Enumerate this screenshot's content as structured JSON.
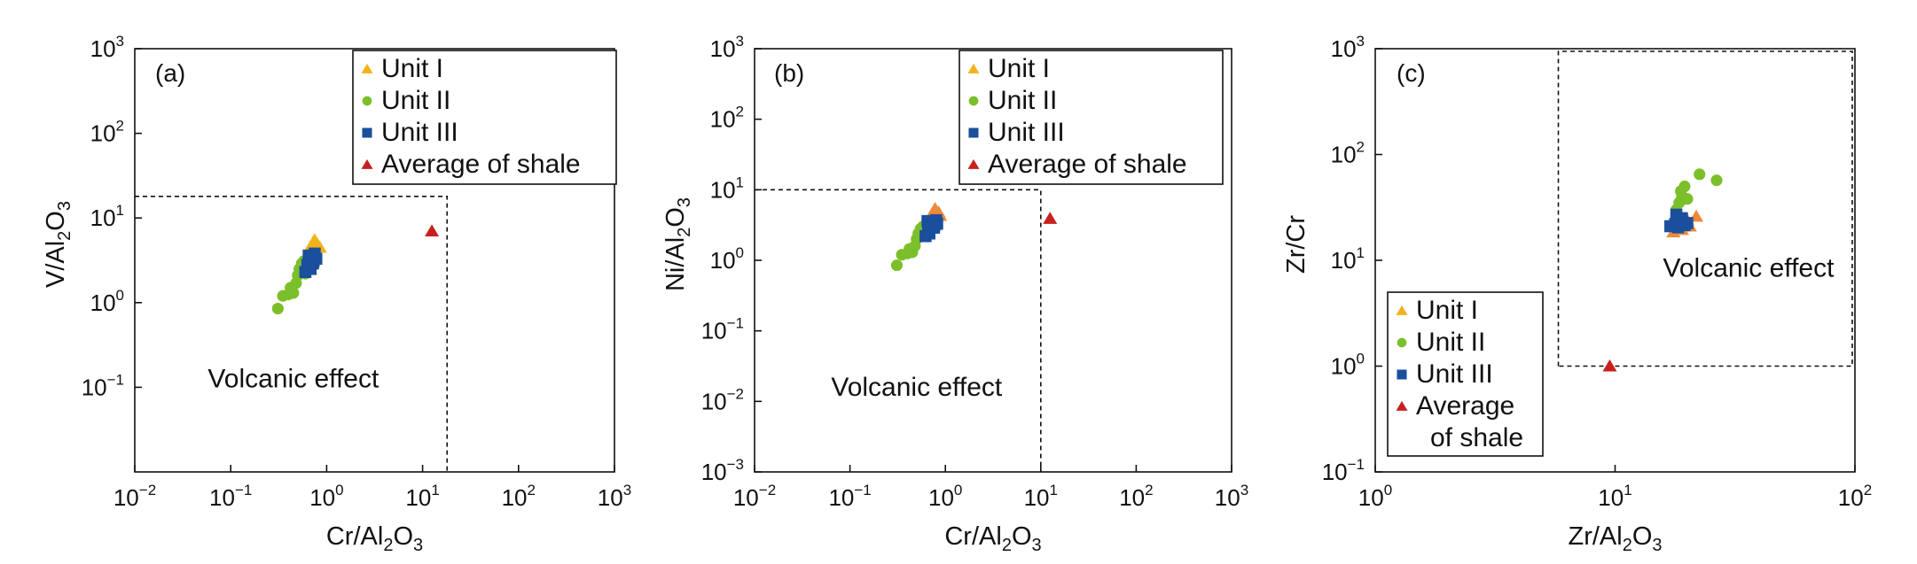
{
  "colors": {
    "unit1": "#f2b21c",
    "unit1_alt": "#ee8a3a",
    "unit2": "#7bbf2a",
    "unit3": "#1a4f9c",
    "shale": "#c8201e",
    "axis": "#111111"
  },
  "chart_data": [
    {
      "type": "scatter",
      "panel_label": "(a)",
      "x_scale": "log",
      "y_scale": "log",
      "xlim": [
        0.01,
        1000
      ],
      "ylim": [
        0.01,
        1000
      ],
      "xlabel": {
        "pre": "Cr/Al",
        "sub1": "2",
        "mid": "O",
        "sub2": "3"
      },
      "ylabel": {
        "pre": "V/Al",
        "sub1": "2",
        "mid": "O",
        "sub2": "3"
      },
      "xticks": [
        {
          "base": "10",
          "exp": "−2",
          "value": 0.01
        },
        {
          "base": "10",
          "exp": "−1",
          "value": 0.1
        },
        {
          "base": "10",
          "exp": "0",
          "value": 1
        },
        {
          "base": "10",
          "exp": "1",
          "value": 10
        },
        {
          "base": "10",
          "exp": "2",
          "value": 100
        },
        {
          "base": "10",
          "exp": "3",
          "value": 1000
        }
      ],
      "yticks": [
        {
          "base": "10",
          "exp": "−1",
          "value": 0.1
        },
        {
          "base": "10",
          "exp": "0",
          "value": 1
        },
        {
          "base": "10",
          "exp": "1",
          "value": 10
        },
        {
          "base": "10",
          "exp": "2",
          "value": 100
        },
        {
          "base": "10",
          "exp": "3",
          "value": 1000
        }
      ],
      "region": {
        "x_min": 0.01,
        "x_max": 18,
        "y_min": 0.01,
        "y_max": 18
      },
      "annotation": {
        "text": "Volcanic effect",
        "x": 0.45,
        "y": 0.1
      },
      "legend": {
        "position": "top-right",
        "entries": [
          {
            "label": "Unit I",
            "series": "unit1"
          },
          {
            "label": "Unit II",
            "series": "unit2"
          },
          {
            "label": "Unit III",
            "series": "unit3"
          },
          {
            "label": "Average of shale",
            "series": "shale"
          }
        ]
      },
      "series": [
        {
          "name": "Unit I",
          "key": "unit1",
          "marker": "triangle",
          "color": "#f2b21c",
          "points": [
            [
              0.75,
              5.5
            ],
            [
              0.8,
              4.9
            ],
            [
              0.68,
              4.6
            ],
            [
              0.72,
              5.1
            ],
            [
              0.85,
              4.5
            ]
          ]
        },
        {
          "name": "Unit II",
          "key": "unit2",
          "marker": "circle",
          "color": "#7bbf2a",
          "points": [
            [
              0.31,
              0.85
            ],
            [
              0.35,
              1.2
            ],
            [
              0.4,
              1.25
            ],
            [
              0.45,
              1.3
            ],
            [
              0.48,
              1.7
            ],
            [
              0.5,
              2.1
            ],
            [
              0.52,
              2.5
            ],
            [
              0.55,
              2.9
            ],
            [
              0.58,
              3.1
            ],
            [
              0.42,
              1.5
            ],
            [
              0.6,
              2.2
            ],
            [
              0.62,
              2.7
            ]
          ]
        },
        {
          "name": "Unit III",
          "key": "unit3",
          "marker": "square",
          "color": "#1a4f9c",
          "points": [
            [
              0.6,
              2.3
            ],
            [
              0.63,
              2.8
            ],
            [
              0.66,
              3.2
            ],
            [
              0.7,
              3.5
            ],
            [
              0.72,
              2.9
            ],
            [
              0.75,
              3.8
            ],
            [
              0.68,
              2.5
            ],
            [
              0.73,
              3.1
            ],
            [
              0.78,
              3.3
            ],
            [
              0.65,
              3.6
            ]
          ]
        },
        {
          "name": "Average of shale",
          "key": "shale",
          "marker": "triangle",
          "color": "#c8201e",
          "points": [
            [
              12.5,
              7.0
            ]
          ]
        }
      ]
    },
    {
      "type": "scatter",
      "panel_label": "(b)",
      "x_scale": "log",
      "y_scale": "log",
      "xlim": [
        0.01,
        1000
      ],
      "ylim": [
        0.001,
        1000
      ],
      "xlabel": {
        "pre": "Cr/Al",
        "sub1": "2",
        "mid": "O",
        "sub2": "3"
      },
      "ylabel": {
        "pre": "Ni/Al",
        "sub1": "2",
        "mid": "O",
        "sub2": "3"
      },
      "xticks": [
        {
          "base": "10",
          "exp": "−2",
          "value": 0.01
        },
        {
          "base": "10",
          "exp": "−1",
          "value": 0.1
        },
        {
          "base": "10",
          "exp": "0",
          "value": 1
        },
        {
          "base": "10",
          "exp": "1",
          "value": 10
        },
        {
          "base": "10",
          "exp": "2",
          "value": 100
        },
        {
          "base": "10",
          "exp": "3",
          "value": 1000
        }
      ],
      "yticks": [
        {
          "base": "10",
          "exp": "−3",
          "value": 0.001
        },
        {
          "base": "10",
          "exp": "−2",
          "value": 0.01
        },
        {
          "base": "10",
          "exp": "−1",
          "value": 0.1
        },
        {
          "base": "10",
          "exp": "0",
          "value": 1
        },
        {
          "base": "10",
          "exp": "1",
          "value": 10
        },
        {
          "base": "10",
          "exp": "2",
          "value": 100
        },
        {
          "base": "10",
          "exp": "3",
          "value": 1000
        }
      ],
      "region": {
        "x_min": 0.01,
        "x_max": 10,
        "y_min": 0.001,
        "y_max": 10
      },
      "annotation": {
        "text": "Volcanic effect",
        "x": 0.5,
        "y": 0.012
      },
      "legend": {
        "position": "top-right",
        "entries": [
          {
            "label": "Unit I",
            "series": "unit1"
          },
          {
            "label": "Unit II",
            "series": "unit2"
          },
          {
            "label": "Unit III",
            "series": "unit3"
          },
          {
            "label": "Average of shale",
            "series": "shale"
          }
        ]
      },
      "series": [
        {
          "name": "Unit I",
          "key": "unit1",
          "marker": "triangle",
          "color": "#ee8a3a",
          "points": [
            [
              0.78,
              5.4
            ],
            [
              0.85,
              4.8
            ],
            [
              0.72,
              4.5
            ],
            [
              0.88,
              4.3
            ],
            [
              0.8,
              5.0
            ]
          ]
        },
        {
          "name": "Unit II",
          "key": "unit2",
          "marker": "circle",
          "color": "#7bbf2a",
          "points": [
            [
              0.31,
              0.85
            ],
            [
              0.35,
              1.2
            ],
            [
              0.4,
              1.25
            ],
            [
              0.45,
              1.3
            ],
            [
              0.48,
              1.6
            ],
            [
              0.5,
              2.0
            ],
            [
              0.52,
              2.4
            ],
            [
              0.55,
              2.8
            ],
            [
              0.58,
              3.0
            ],
            [
              0.42,
              1.45
            ],
            [
              0.6,
              2.2
            ],
            [
              0.62,
              2.6
            ]
          ]
        },
        {
          "name": "Unit III",
          "key": "unit3",
          "marker": "square",
          "color": "#1a4f9c",
          "points": [
            [
              0.62,
              2.2
            ],
            [
              0.66,
              2.7
            ],
            [
              0.7,
              3.1
            ],
            [
              0.73,
              3.5
            ],
            [
              0.76,
              2.9
            ],
            [
              0.8,
              3.7
            ],
            [
              0.68,
              2.4
            ],
            [
              0.77,
              3.2
            ],
            [
              0.82,
              3.3
            ],
            [
              0.65,
              3.6
            ]
          ]
        },
        {
          "name": "Average of shale",
          "key": "shale",
          "marker": "triangle",
          "color": "#c8201e",
          "points": [
            [
              12.5,
              3.9
            ]
          ]
        }
      ]
    },
    {
      "type": "scatter",
      "panel_label": "(c)",
      "x_scale": "log",
      "y_scale": "log",
      "xlim": [
        1,
        100
      ],
      "ylim": [
        0.1,
        1000
      ],
      "xlabel": {
        "pre": "Zr/Al",
        "sub1": "2",
        "mid": "O",
        "sub2": "3"
      },
      "ylabel": {
        "pre": "Zr/Cr",
        "sub1": "",
        "mid": "",
        "sub2": ""
      },
      "xticks": [
        {
          "base": "10",
          "exp": "0",
          "value": 1
        },
        {
          "base": "10",
          "exp": "1",
          "value": 10
        },
        {
          "base": "10",
          "exp": "2",
          "value": 100
        }
      ],
      "yticks": [
        {
          "base": "10",
          "exp": "−1",
          "value": 0.1
        },
        {
          "base": "10",
          "exp": "0",
          "value": 1
        },
        {
          "base": "10",
          "exp": "1",
          "value": 10
        },
        {
          "base": "10",
          "exp": "2",
          "value": 100
        },
        {
          "base": "10",
          "exp": "3",
          "value": 1000
        }
      ],
      "region": {
        "x_min": 5.8,
        "x_max": 100,
        "y_min": 1,
        "y_max": 1000
      },
      "annotation": {
        "text": "Volcanic effect",
        "x": 36,
        "y": 7
      },
      "legend": {
        "position": "bottom-left",
        "entries": [
          {
            "label": "Unit I",
            "series": "unit1"
          },
          {
            "label": "Unit II",
            "series": "unit2"
          },
          {
            "label": "Unit III",
            "series": "unit3"
          },
          {
            "label": "Average of shale",
            "series": "shale"
          }
        ]
      },
      "series": [
        {
          "name": "Unit I",
          "key": "unit1",
          "marker": "triangle",
          "color": "#ee8a3a",
          "points": [
            [
              17.5,
              18.5
            ],
            [
              19.0,
              19.5
            ],
            [
              20.5,
              21.0
            ],
            [
              21.8,
              26.0
            ],
            [
              18.5,
              22.0
            ],
            [
              20.0,
              24.0
            ]
          ]
        },
        {
          "name": "Unit II",
          "key": "unit2",
          "marker": "circle",
          "color": "#7bbf2a",
          "points": [
            [
              18.0,
              30.0
            ],
            [
              18.5,
              35.0
            ],
            [
              19.0,
              40.0
            ],
            [
              19.5,
              50.0
            ],
            [
              18.8,
              45.0
            ],
            [
              20.0,
              38.0
            ],
            [
              22.5,
              65.0
            ],
            [
              26.5,
              57.0
            ]
          ]
        },
        {
          "name": "Unit III",
          "key": "unit3",
          "marker": "square",
          "color": "#1a4f9c",
          "points": [
            [
              17.0,
              21.0
            ],
            [
              17.8,
              22.0
            ],
            [
              18.5,
              23.5
            ],
            [
              19.0,
              25.0
            ],
            [
              18.0,
              27.0
            ],
            [
              19.5,
              21.5
            ],
            [
              20.0,
              22.5
            ],
            [
              18.3,
              20.5
            ]
          ]
        },
        {
          "name": "Average of shale",
          "key": "shale",
          "marker": "triangle",
          "color": "#c8201e",
          "points": [
            [
              9.5,
              1.0
            ]
          ]
        }
      ]
    }
  ]
}
